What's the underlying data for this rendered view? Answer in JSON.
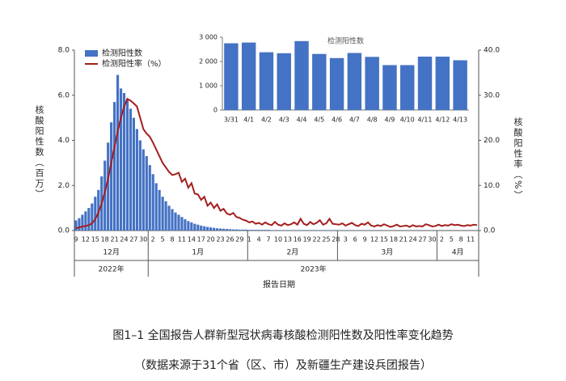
{
  "figure_caption": "图1–1 全国报告人群新型冠状病毒核酸检测阳性数及阳性率变化趋势",
  "figure_note": "（数据来源于31个省（区、市）及新疆生产建设兵团报告）",
  "chart_data": [
    {
      "type": "bar",
      "y_label": "核酸阳性数（百万）",
      "y2_label": "核酸阳性率（%）",
      "x_label": "报告日期",
      "month_labels": [
        "12月",
        "1月",
        "2月",
        "3月",
        "4月"
      ],
      "year_labels": [
        "2022年",
        "2023年"
      ],
      "legend": "top-left",
      "categories": [
        "9",
        null,
        null,
        "12",
        null,
        null,
        "15",
        null,
        null,
        "18",
        null,
        null,
        "21",
        null,
        null,
        "24",
        null,
        null,
        "27",
        null,
        null,
        "30",
        null,
        null,
        "2",
        null,
        null,
        "5",
        null,
        null,
        "8",
        null,
        null,
        "11",
        null,
        null,
        "14",
        null,
        null,
        "17",
        null,
        null,
        "20",
        null,
        null,
        "23",
        null,
        null,
        "26",
        null,
        null,
        "29",
        null,
        null,
        "1",
        null,
        null,
        "4",
        null,
        null,
        "7",
        null,
        null,
        "10",
        null,
        null,
        "13",
        null,
        null,
        "16",
        null,
        null,
        "19",
        null,
        null,
        "22",
        null,
        null,
        "25",
        null,
        null,
        "28",
        null,
        null,
        "3",
        null,
        null,
        "6",
        null,
        null,
        "9",
        null,
        null,
        "12",
        null,
        null,
        "15",
        null,
        null,
        "18",
        null,
        null,
        "21",
        null,
        null,
        "24",
        null,
        null,
        "27",
        null,
        null,
        "30",
        null,
        null,
        "2",
        null,
        null,
        "5",
        null,
        null,
        "8",
        null,
        null,
        "11",
        null,
        null
      ],
      "series": [
        {
          "name": "检测阳性数",
          "type": "bar",
          "color": "#4472c4",
          "values": [
            0.45,
            0.55,
            0.7,
            0.85,
            1.0,
            1.2,
            1.5,
            1.8,
            2.4,
            3.1,
            3.9,
            4.8,
            5.7,
            6.9,
            6.3,
            6.1,
            5.8,
            5.4,
            5.0,
            4.5,
            4.0,
            3.6,
            3.3,
            2.9,
            2.5,
            2.1,
            1.8,
            1.5,
            1.3,
            1.1,
            0.95,
            0.8,
            0.7,
            0.6,
            0.5,
            0.42,
            0.36,
            0.3,
            0.26,
            0.22,
            0.19,
            0.16,
            0.14,
            0.12,
            0.1,
            0.09,
            0.08,
            0.07,
            0.06,
            0.05,
            0.05,
            0.04,
            0.04,
            0.04,
            0.03,
            0.03,
            0.03,
            0.03,
            0.03,
            0.03,
            0.03,
            0.02,
            0.02,
            0.02,
            0.02,
            0.02,
            0.02,
            0.02,
            0.02,
            0.02,
            0.02,
            0.02,
            0.02,
            0.02,
            0.02,
            0.02,
            0.02,
            0.02,
            0.02,
            0.02,
            0.02,
            0.02,
            0.01,
            0.01,
            0.01,
            0.01,
            0.01,
            0.01,
            0.01,
            0.01,
            0.01,
            0.01,
            0.01,
            0.01,
            0.01,
            0.01,
            0.01,
            0.005,
            0.005,
            0.005,
            0.005,
            0.005,
            0.005,
            0.005,
            0.005,
            0.005,
            0.005,
            0.005,
            0.005,
            0.005,
            0.005,
            0.005,
            0.005,
            0.003,
            0.003,
            0.003,
            0.003,
            0.003,
            0.003,
            0.003,
            0.003,
            0.003,
            0.003,
            0.003,
            0.003,
            0.003
          ]
        },
        {
          "name": "检测阳性率（%）",
          "type": "line",
          "axis": "y2",
          "color": "#a51d1d",
          "values": [
            0.5,
            0.7,
            0.9,
            1.0,
            1.2,
            1.6,
            2.5,
            4.0,
            6.0,
            8.5,
            11.5,
            15,
            18.5,
            22,
            25,
            27.5,
            29.2,
            28.8,
            28.2,
            27.5,
            25,
            22.5,
            21.5,
            20.8,
            19.5,
            18,
            16.5,
            15,
            14,
            13,
            12.3,
            12.5,
            12.8,
            10.8,
            11.5,
            9.5,
            10.5,
            8.2,
            8,
            6.8,
            7.5,
            5.5,
            6.2,
            5,
            5.8,
            4.4,
            4.8,
            3.8,
            3.5,
            3.9,
            3.0,
            2.8,
            2.4,
            2.2,
            1.8,
            2.0,
            1.5,
            1.7,
            1.3,
            1.8,
            1.4,
            1.2,
            1.9,
            1.3,
            1.1,
            1.6,
            1.2,
            1.4,
            1.8,
            1.3,
            2.6,
            1.5,
            1.2,
            1.9,
            1.4,
            1.7,
            2.3,
            1.3,
            1.6,
            2.6,
            1.5,
            1.4,
            1.3,
            1.6,
            1.1,
            1.4,
            1.7,
            1.2,
            1.0,
            1.5,
            1.3,
            1.8,
            1.1,
            0.9,
            1.2,
            1.0,
            1.4,
            1.1,
            0.8,
            1.0,
            1.3,
            0.9,
            1.0,
            1.1,
            0.8,
            1.2,
            0.9,
            1.0,
            0.9,
            1.4,
            1.2,
            0.9,
            1.0,
            1.3,
            1.0,
            1.2,
            1.1,
            1.4,
            1.2,
            1.3,
            1.1,
            1.0,
            1.2,
            1.1,
            1.3,
            1.2
          ]
        }
      ],
      "ylim": [
        0,
        8
      ],
      "yticks": [
        {
          "value": 0,
          "label": "0.0"
        },
        {
          "value": 2,
          "label": "2.0"
        },
        {
          "value": 4,
          "label": "4.0"
        },
        {
          "value": 6,
          "label": "6.0"
        },
        {
          "value": 8,
          "label": "8.0"
        }
      ],
      "y2lim": [
        0,
        40
      ],
      "y2ticks": [
        {
          "value": 0,
          "label": "0.0"
        },
        {
          "value": 10,
          "label": "10.0"
        },
        {
          "value": 20,
          "label": "20.0"
        },
        {
          "value": 30,
          "label": "30.0"
        },
        {
          "value": 40,
          "label": "40.0"
        }
      ]
    },
    {
      "type": "bar",
      "title": "检测阳性数",
      "color": "#4472c4",
      "categories": [
        "3/31",
        "4/1",
        "4/2",
        "4/3",
        "4/4",
        "4/5",
        "4/6",
        "4/7",
        "4/8",
        "4/9",
        "4/10",
        "4/11",
        "4/12",
        "4/13"
      ],
      "values": [
        2750,
        2780,
        2380,
        2340,
        2840,
        2310,
        2140,
        2350,
        2190,
        1850,
        1850,
        2200,
        2200,
        2050
      ],
      "ylim": [
        0,
        3000
      ],
      "yticks": [
        0,
        {
          "value": 1000,
          "label": "1 000"
        },
        {
          "value": 2000,
          "label": "2 000"
        },
        {
          "value": 3000,
          "label": "3 000"
        }
      ]
    }
  ]
}
